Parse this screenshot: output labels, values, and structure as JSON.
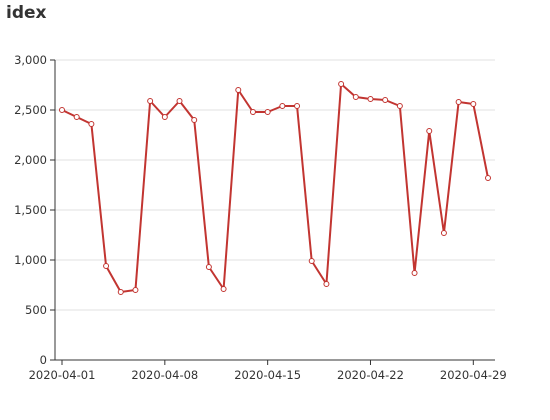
{
  "chart_data": {
    "type": "line",
    "title": "idex",
    "xlabel": "",
    "ylabel": "",
    "ylim": [
      0,
      3000
    ],
    "y_ticks": [
      "0",
      "500",
      "1,000",
      "1,500",
      "2,000",
      "2,500",
      "3,000"
    ],
    "y_tick_values": [
      0,
      500,
      1000,
      1500,
      2000,
      2500,
      3000
    ],
    "x_tick_labels": [
      "2020-04-01",
      "2020-04-08",
      "2020-04-15",
      "2020-04-22",
      "2020-04-29"
    ],
    "x_tick_indices": [
      0,
      7,
      14,
      21,
      28
    ],
    "grid": true,
    "legend": "none",
    "line_color": "#c23531",
    "categories": [
      "2020-04-01",
      "2020-04-02",
      "2020-04-03",
      "2020-04-04",
      "2020-04-05",
      "2020-04-06",
      "2020-04-07",
      "2020-04-08",
      "2020-04-09",
      "2020-04-10",
      "2020-04-11",
      "2020-04-12",
      "2020-04-13",
      "2020-04-14",
      "2020-04-15",
      "2020-04-16",
      "2020-04-17",
      "2020-04-18",
      "2020-04-19",
      "2020-04-20",
      "2020-04-21",
      "2020-04-22",
      "2020-04-23",
      "2020-04-24",
      "2020-04-25",
      "2020-04-26",
      "2020-04-27",
      "2020-04-28",
      "2020-04-29",
      "2020-04-30"
    ],
    "series": [
      {
        "values": [
          2500,
          2430,
          2360,
          940,
          680,
          700,
          2590,
          2430,
          2590,
          2400,
          930,
          710,
          2700,
          2480,
          2480,
          2540,
          2540,
          990,
          760,
          2760,
          2630,
          2610,
          2600,
          2540,
          870,
          2290,
          1270,
          2580,
          2560,
          1820
        ]
      }
    ]
  }
}
